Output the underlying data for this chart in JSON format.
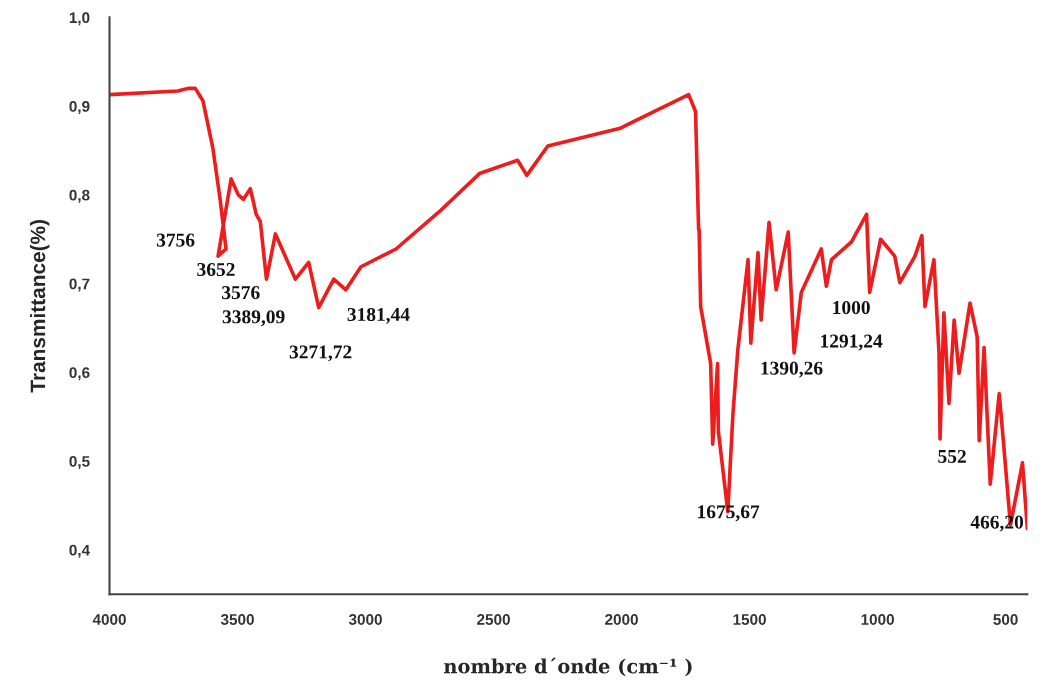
{
  "chart_data": {
    "type": "line",
    "xlabel": "nombre d´onde (cm⁻¹ )",
    "ylabel": "Transmittance(%)",
    "xlim": [
      4000,
      415
    ],
    "ylim": [
      0.35,
      1.0
    ],
    "xticks": [
      4000,
      3500,
      3000,
      2500,
      2000,
      1500,
      1000,
      500
    ],
    "yticks": [
      {
        "value": 0.4,
        "label": "0,4"
      },
      {
        "value": 0.5,
        "label": "0,5"
      },
      {
        "value": 0.6,
        "label": "0,6"
      },
      {
        "value": 0.7,
        "label": "0,7"
      },
      {
        "value": 0.8,
        "label": "0,8"
      },
      {
        "value": 0.9,
        "label": "0,9"
      },
      {
        "value": 1.0,
        "label": "1,0"
      }
    ],
    "grid": false,
    "marker": "none",
    "line_style": "solid",
    "series": [
      {
        "color": "#ee1c1c",
        "x": [
          4000,
          3733,
          3694,
          3665,
          3635,
          3596,
          3568,
          3545,
          3576,
          3525,
          3497,
          3477,
          3450,
          3427,
          3411,
          3387,
          3352,
          3274,
          3222,
          3183,
          3124,
          3077,
          3018,
          2881,
          2712,
          2555,
          2406,
          2370,
          2288,
          2005,
          1985,
          1738,
          1711,
          1699,
          1697,
          1691,
          1652,
          1644,
          1625,
          1622,
          1585,
          1565,
          1546,
          1506,
          1495,
          1467,
          1455,
          1424,
          1396,
          1349,
          1338,
          1326,
          1298,
          1220,
          1200,
          1180,
          1102,
          1043,
          1031,
          988,
          933,
          913,
          854,
          827,
          815,
          780,
          760,
          756,
          741,
          721,
          701,
          682,
          639,
          611,
          603,
          584,
          560,
          525,
          513,
          481,
          434,
          415
        ],
        "values": [
          0.913,
          0.917,
          0.92,
          0.92,
          0.906,
          0.852,
          0.795,
          0.739,
          0.731,
          0.818,
          0.8,
          0.795,
          0.807,
          0.778,
          0.77,
          0.705,
          0.756,
          0.705,
          0.724,
          0.673,
          0.705,
          0.693,
          0.719,
          0.739,
          0.781,
          0.824,
          0.839,
          0.822,
          0.855,
          0.875,
          0.878,
          0.913,
          0.894,
          0.761,
          0.761,
          0.674,
          0.61,
          0.519,
          0.61,
          0.534,
          0.443,
          0.553,
          0.625,
          0.727,
          0.633,
          0.735,
          0.659,
          0.769,
          0.693,
          0.758,
          0.693,
          0.622,
          0.69,
          0.739,
          0.697,
          0.727,
          0.747,
          0.778,
          0.69,
          0.75,
          0.731,
          0.701,
          0.731,
          0.754,
          0.674,
          0.727,
          0.622,
          0.525,
          0.667,
          0.565,
          0.659,
          0.599,
          0.678,
          0.64,
          0.523,
          0.628,
          0.474,
          0.576,
          0.537,
          0.428,
          0.498,
          0.424
        ]
      }
    ],
    "annotations": [
      "3756",
      "3652",
      "3576",
      "3389,09",
      "3181,44",
      "3271,72",
      "1675,67",
      "1390,26",
      "1000",
      "1291,24",
      "552",
      "466,20"
    ]
  }
}
